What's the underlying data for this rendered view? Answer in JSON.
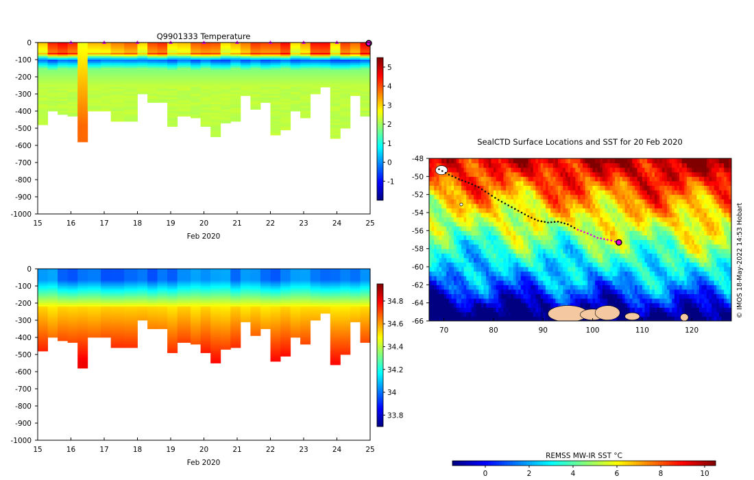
{
  "charts": {
    "temperature": {
      "title": "Q9901333  Temperature",
      "xlabel": "Feb 2020",
      "type": "heatmap",
      "x_ticks": [
        15,
        16,
        17,
        18,
        19,
        20,
        21,
        22,
        23,
        24,
        25
      ],
      "y_ticks": [
        0,
        -100,
        -200,
        -300,
        -400,
        -500,
        -600,
        -700,
        -800,
        -900,
        -1000
      ],
      "ylim": [
        -1000,
        0
      ],
      "xlim": [
        15,
        25
      ],
      "colorbar_ticks": [
        5,
        4,
        3,
        2,
        1,
        0,
        -1
      ],
      "colorbar_range": [
        -2,
        5.5
      ],
      "daily_markers": [
        16,
        17,
        18,
        19,
        20,
        21,
        22,
        23,
        24
      ]
    },
    "salinity": {
      "title": "",
      "xlabel": "Feb 2020",
      "type": "heatmap",
      "x_ticks": [
        15,
        16,
        17,
        18,
        19,
        20,
        21,
        22,
        23,
        24,
        25
      ],
      "y_ticks": [
        0,
        -100,
        -200,
        -300,
        -400,
        -500,
        -600,
        -700,
        -800,
        -900,
        -1000
      ],
      "ylim": [
        -1000,
        0
      ],
      "xlim": [
        15,
        25
      ],
      "colorbar_ticks": [
        34.8,
        34.6,
        34.4,
        34.2,
        34,
        33.8
      ],
      "colorbar_range": [
        33.7,
        34.95
      ]
    },
    "map": {
      "title": "SealCTD Surface Locations and SST for 20 Feb 2020",
      "type": "heatmap",
      "x_ticks": [
        70,
        80,
        90,
        100,
        110,
        120
      ],
      "y_ticks": [
        -48,
        -50,
        -52,
        -54,
        -56,
        -58,
        -60,
        -62,
        -64,
        -66
      ],
      "lon_range": [
        67,
        128
      ],
      "lat_range": [
        -66,
        -48
      ],
      "track": [
        [
          69,
          -49.2
        ],
        [
          71,
          -49.8
        ],
        [
          73,
          -50.3
        ],
        [
          75,
          -50.7
        ],
        [
          77,
          -51.2
        ],
        [
          79,
          -51.9
        ],
        [
          81,
          -52.6
        ],
        [
          83,
          -53.2
        ],
        [
          85,
          -53.8
        ],
        [
          87,
          -54.4
        ],
        [
          89,
          -54.9
        ],
        [
          91,
          -55.1
        ],
        [
          93,
          -55.0
        ],
        [
          95,
          -55.3
        ],
        [
          97,
          -55.9
        ],
        [
          99,
          -56.3
        ],
        [
          101,
          -56.8
        ],
        [
          103,
          -57.0
        ],
        [
          105.3,
          -57.3
        ]
      ],
      "credit": "© IMOS 18-May-2022 14:53 Hobart",
      "colorbar_label": "REMSS MW-IR SST °C",
      "colorbar_ticks": [
        0,
        2,
        4,
        6,
        8,
        10
      ],
      "colorbar_range": [
        -1.5,
        10.5
      ]
    }
  },
  "chart_data": [
    {
      "type": "heatmap",
      "title": "Q9901333  Temperature",
      "xlabel": "Feb 2020",
      "ylabel": "",
      "x_range": [
        15,
        25
      ],
      "ylim": [
        -1000,
        0
      ],
      "colorbar_range": [
        -2,
        5.5
      ],
      "profiles_day": [
        15.0,
        15.3,
        15.6,
        15.9,
        16.2,
        16.5,
        16.9,
        17.2,
        17.6,
        18.0,
        18.3,
        18.6,
        18.9,
        19.2,
        19.6,
        19.9,
        20.2,
        20.5,
        20.8,
        21.1,
        21.4,
        21.7,
        22.0,
        22.3,
        22.6,
        22.9,
        23.2,
        23.5,
        23.8,
        24.1,
        24.4,
        24.7
      ],
      "profiles_max_depth": [
        -475,
        -400,
        -420,
        -425,
        -575,
        -400,
        -395,
        -455,
        -455,
        -300,
        -350,
        -345,
        -485,
        -430,
        -440,
        -490,
        -550,
        -470,
        -460,
        -310,
        -390,
        -350,
        -535,
        -505,
        -400,
        -440,
        -300,
        -260,
        -555,
        -500,
        -310,
        -430
      ]
    },
    {
      "type": "heatmap",
      "title": "",
      "xlabel": "Feb 2020",
      "ylabel": "",
      "x_range": [
        15,
        25
      ],
      "ylim": [
        -1000,
        0
      ],
      "colorbar_range": [
        33.7,
        34.95
      ],
      "profiles_day": [
        15.0,
        15.3,
        15.6,
        15.9,
        16.2,
        16.5,
        16.9,
        17.2,
        17.6,
        18.0,
        18.3,
        18.6,
        18.9,
        19.2,
        19.6,
        19.9,
        20.2,
        20.5,
        20.8,
        21.1,
        21.4,
        21.7,
        22.0,
        22.3,
        22.6,
        22.9,
        23.2,
        23.5,
        23.8,
        24.1,
        24.4,
        24.7
      ],
      "profiles_max_depth": [
        -475,
        -400,
        -420,
        -425,
        -575,
        -400,
        -395,
        -455,
        -455,
        -300,
        -350,
        -345,
        -485,
        -430,
        -440,
        -490,
        -550,
        -470,
        -460,
        -310,
        -390,
        -350,
        -535,
        -505,
        -400,
        -440,
        -300,
        -260,
        -555,
        -500,
        -310,
        -430
      ]
    },
    {
      "type": "heatmap",
      "title": "SealCTD Surface Locations and SST for 20 Feb 2020",
      "xlabel": "",
      "ylabel": "",
      "x_range": [
        67,
        128
      ],
      "ylim": [
        -66,
        -48
      ],
      "colorbar_label": "REMSS MW-IR SST °C",
      "colorbar_range": [
        -1.5,
        10.5
      ]
    }
  ],
  "colors": {
    "track_point": "#111111",
    "recent_point": "#e000e0",
    "last_position": "#e000e0",
    "land": "#f4c8a0"
  }
}
